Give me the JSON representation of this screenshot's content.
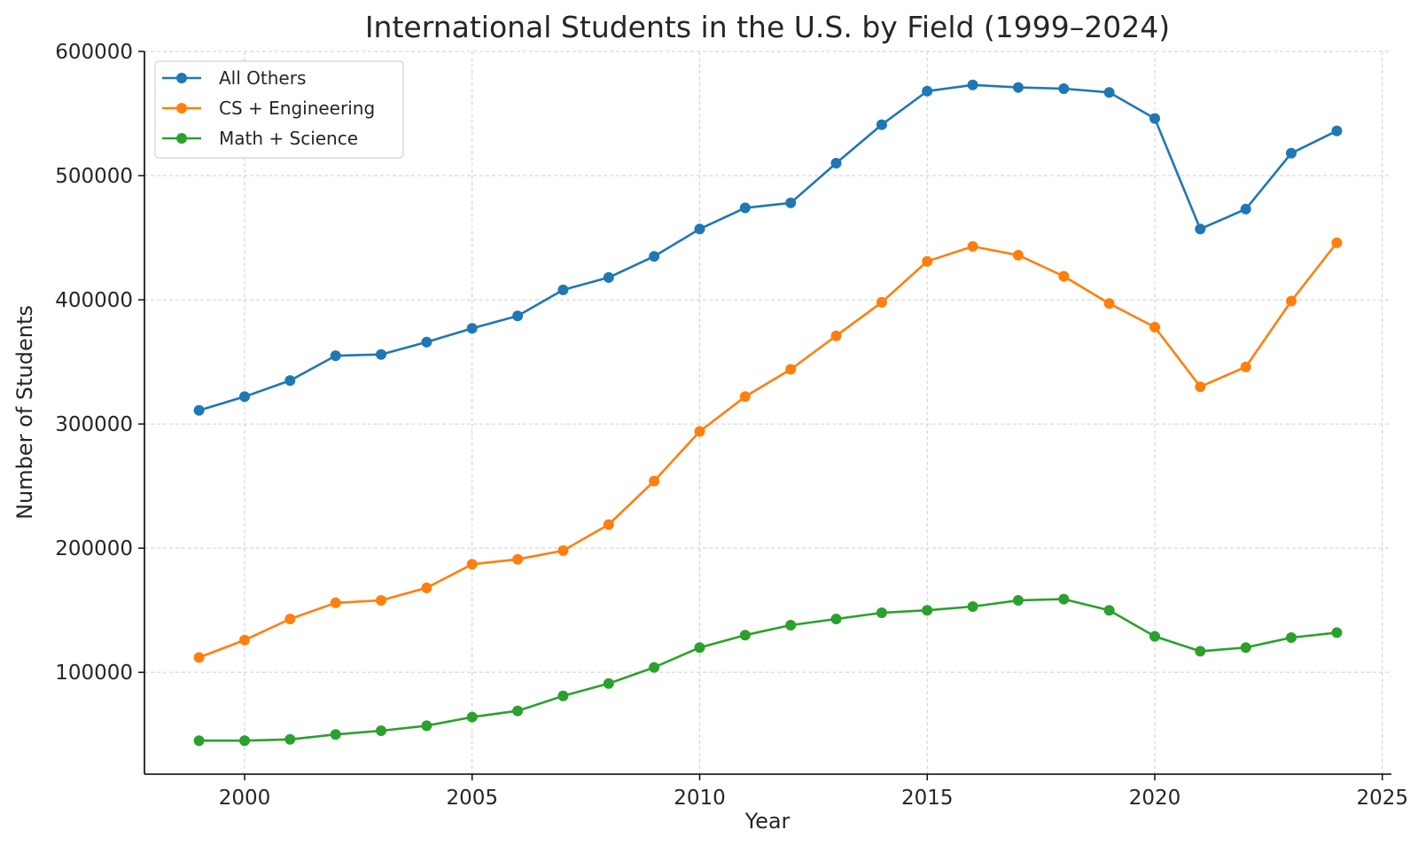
{
  "chart_data": {
    "type": "line",
    "title": "International Students in the U.S. by Field (1999–2024)",
    "xlabel": "Year",
    "ylabel": "Number of Students",
    "xlim": [
      1997.8,
      2025.2
    ],
    "ylim": [
      18000,
      600000
    ],
    "xticks": [
      2000,
      2005,
      2010,
      2015,
      2020,
      2025
    ],
    "yticks": [
      100000,
      200000,
      300000,
      400000,
      500000,
      600000
    ],
    "grid": true,
    "legend_position": "top-left",
    "x": [
      1999,
      2000,
      2001,
      2002,
      2003,
      2004,
      2005,
      2006,
      2007,
      2008,
      2009,
      2010,
      2011,
      2012,
      2013,
      2014,
      2015,
      2016,
      2017,
      2018,
      2019,
      2020,
      2021,
      2022,
      2023,
      2024
    ],
    "series": [
      {
        "name": "All Others",
        "color": "#1f77b4",
        "values": [
          311000,
          322000,
          335000,
          355000,
          356000,
          366000,
          377000,
          387000,
          408000,
          418000,
          435000,
          457000,
          474000,
          478000,
          510000,
          541000,
          568000,
          573000,
          571000,
          570000,
          567000,
          546000,
          457000,
          473000,
          518000,
          536000
        ]
      },
      {
        "name": "CS + Engineering",
        "color": "#ff7f0e",
        "values": [
          112000,
          126000,
          143000,
          156000,
          158000,
          168000,
          187000,
          191000,
          198000,
          219000,
          254000,
          294000,
          322000,
          344000,
          371000,
          398000,
          431000,
          443000,
          436000,
          419000,
          397000,
          378000,
          330000,
          346000,
          399000,
          446000
        ]
      },
      {
        "name": "Math + Science",
        "color": "#2ca02c",
        "values": [
          45000,
          45000,
          46000,
          50000,
          53000,
          57000,
          64000,
          69000,
          81000,
          91000,
          104000,
          120000,
          130000,
          138000,
          143000,
          148000,
          150000,
          153000,
          158000,
          159000,
          150000,
          129000,
          117000,
          120000,
          128000,
          132000
        ]
      }
    ]
  }
}
